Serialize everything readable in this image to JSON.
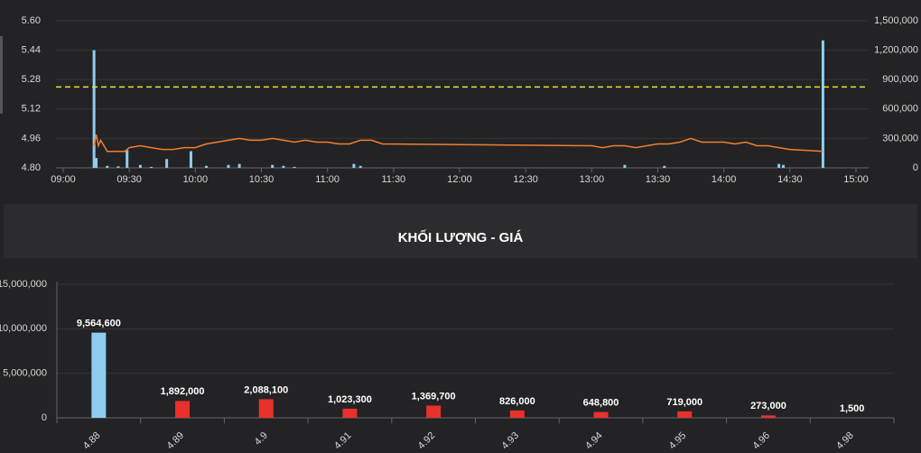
{
  "chart_data": [
    {
      "type": "combo",
      "xlim": [
        "09:00",
        "15:00"
      ],
      "xticks": [
        "09:00",
        "09:30",
        "10:00",
        "10:30",
        "11:00",
        "11:30",
        "12:00",
        "12:30",
        "13:00",
        "13:30",
        "14:00",
        "14:30",
        "15:00"
      ],
      "ylim": [
        4.8,
        5.6
      ],
      "yticks": [
        {
          "value": 4.8,
          "label": "4.80"
        },
        4.96,
        5.12,
        5.28,
        5.44,
        {
          "value": 5.6,
          "label": "5.60"
        }
      ],
      "y2lim": [
        0,
        1500000
      ],
      "y2ticks": [
        0,
        {
          "value": 300000,
          "label": "300,000"
        },
        {
          "value": 600000,
          "label": "600,000"
        },
        {
          "value": 900000,
          "label": "900,000"
        },
        {
          "value": 1200000,
          "label": "1,200,000"
        },
        {
          "value": 1500000,
          "label": "1,500,000"
        }
      ],
      "reference_line": {
        "value": 5.24,
        "color": "#e8e23a"
      },
      "series": [
        {
          "kind": "line",
          "color": "#f07f2c",
          "x": [
            "09:14",
            "09:15",
            "09:16",
            "09:17",
            "09:18",
            "09:20",
            "09:25",
            "09:28",
            "09:30",
            "09:35",
            "09:40",
            "09:45",
            "09:50",
            "09:55",
            "10:00",
            "10:05",
            "10:10",
            "10:15",
            "10:20",
            "10:25",
            "10:30",
            "10:35",
            "10:40",
            "10:45",
            "10:50",
            "10:55",
            "11:00",
            "11:05",
            "11:10",
            "11:15",
            "11:20",
            "11:25",
            "13:00",
            "13:05",
            "13:10",
            "13:15",
            "13:20",
            "13:25",
            "13:30",
            "13:35",
            "13:40",
            "13:45",
            "13:50",
            "13:55",
            "14:00",
            "14:05",
            "14:10",
            "14:15",
            "14:20",
            "14:25",
            "14:30",
            "14:45"
          ],
          "values": [
            4.92,
            4.98,
            4.92,
            4.95,
            4.93,
            4.89,
            4.89,
            4.89,
            4.91,
            4.92,
            4.91,
            4.9,
            4.9,
            4.91,
            4.91,
            4.93,
            4.94,
            4.95,
            4.96,
            4.95,
            4.95,
            4.96,
            4.95,
            4.94,
            4.95,
            4.94,
            4.94,
            4.93,
            4.93,
            4.95,
            4.95,
            4.93,
            4.92,
            4.91,
            4.92,
            4.92,
            4.91,
            4.92,
            4.93,
            4.93,
            4.94,
            4.96,
            4.94,
            4.94,
            4.94,
            4.93,
            4.94,
            4.92,
            4.92,
            4.91,
            4.9,
            4.89
          ]
        },
        {
          "kind": "bar",
          "axis": "y2",
          "color": "#8ecdf0",
          "x": [
            "09:14",
            "09:15",
            "09:20",
            "09:25",
            "09:29",
            "09:35",
            "09:40",
            "09:47",
            "09:58",
            "10:05",
            "10:15",
            "10:20",
            "10:35",
            "10:40",
            "10:45",
            "11:12",
            "11:15",
            "13:15",
            "13:33",
            "14:25",
            "14:27",
            "14:45"
          ],
          "values": [
            1200000,
            100000,
            20000,
            15000,
            180000,
            30000,
            10000,
            90000,
            170000,
            20000,
            30000,
            40000,
            30000,
            20000,
            10000,
            40000,
            20000,
            30000,
            20000,
            40000,
            30000,
            1300000
          ]
        }
      ]
    },
    {
      "type": "bar",
      "title": "KHỐI LƯỢNG - GIÁ",
      "categories": [
        "4.88",
        "4.89",
        "4.9",
        "4.91",
        "4.92",
        "4.93",
        "4.94",
        "4.95",
        "4.96",
        "4.98"
      ],
      "values": [
        9564600,
        1892000,
        2088100,
        1023300,
        1369700,
        826000,
        648800,
        719000,
        273000,
        1500
      ],
      "value_labels": [
        "9,564,600",
        "1,892,000",
        "2,088,100",
        "1,023,300",
        "1,369,700",
        "826,000",
        "648,800",
        "719,000",
        "273,000",
        "1,500"
      ],
      "colors": [
        "#8ecdf0",
        "#e8312a",
        "#e8312a",
        "#e8312a",
        "#e8312a",
        "#e8312a",
        "#e8312a",
        "#e8312a",
        "#e8312a",
        "#e8312a"
      ],
      "ylim": [
        0,
        15000000
      ],
      "yticks": [
        0,
        {
          "value": 5000000,
          "label": "5,000,000"
        },
        {
          "value": 10000000,
          "label": "10,000,000"
        },
        {
          "value": 15000000,
          "label": "15,000,000"
        }
      ],
      "grid": true
    }
  ]
}
